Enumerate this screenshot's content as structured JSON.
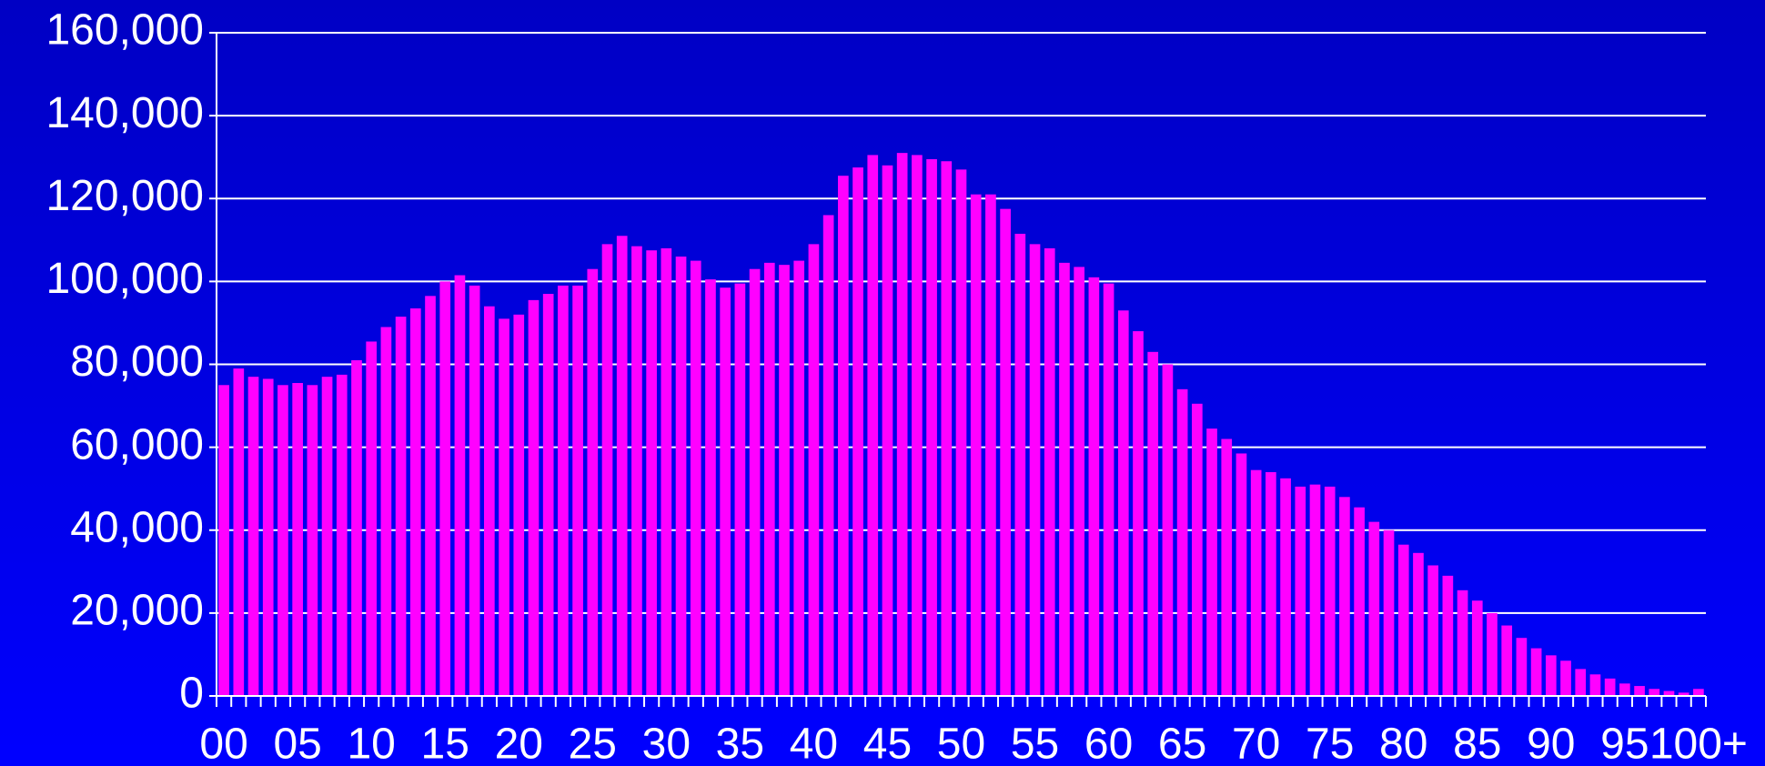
{
  "chart_data": {
    "type": "bar",
    "categories": [
      "00",
      null,
      null,
      null,
      null,
      "05",
      null,
      null,
      null,
      null,
      "10",
      null,
      null,
      null,
      null,
      "15",
      null,
      null,
      null,
      null,
      "20",
      null,
      null,
      null,
      null,
      "25",
      null,
      null,
      null,
      null,
      "30",
      null,
      null,
      null,
      null,
      "35",
      null,
      null,
      null,
      null,
      "40",
      null,
      null,
      null,
      null,
      "45",
      null,
      null,
      null,
      null,
      "50",
      null,
      null,
      null,
      null,
      "55",
      null,
      null,
      null,
      null,
      "60",
      null,
      null,
      null,
      null,
      "65",
      null,
      null,
      null,
      null,
      "70",
      null,
      null,
      null,
      null,
      "75",
      null,
      null,
      null,
      null,
      "80",
      null,
      null,
      null,
      null,
      "85",
      null,
      null,
      null,
      null,
      "90",
      null,
      null,
      null,
      null,
      "95",
      null,
      null,
      null,
      null,
      "100+"
    ],
    "values": [
      75000,
      79000,
      77000,
      76500,
      75000,
      75500,
      75000,
      77000,
      77500,
      81000,
      85500,
      89000,
      91500,
      93500,
      96500,
      100000,
      101500,
      99000,
      94000,
      91000,
      92000,
      95500,
      97000,
      99000,
      99000,
      103000,
      109000,
      111000,
      108500,
      107500,
      108000,
      106000,
      105000,
      100500,
      98500,
      99500,
      103000,
      104500,
      104000,
      105000,
      109000,
      116000,
      125500,
      127500,
      130500,
      128000,
      131000,
      130500,
      129500,
      129000,
      127000,
      121000,
      121000,
      117500,
      111500,
      109000,
      108000,
      104500,
      103500,
      101000,
      99500,
      93000,
      88000,
      83000,
      80000,
      74000,
      70500,
      64500,
      62000,
      58500,
      54500,
      54000,
      52500,
      50500,
      51000,
      50500,
      48000,
      45500,
      42000,
      40000,
      36500,
      34500,
      31500,
      29000,
      25500,
      23000,
      20000,
      17000,
      14000,
      11500,
      9800,
      8500,
      6500,
      5200,
      4200,
      3000,
      2400,
      1700,
      1200,
      800,
      1700
    ],
    "color": "#ff00ff",
    "ylim": [
      0,
      160000
    ],
    "yticks": [
      0,
      {
        "value": 20000,
        "label": "20,000"
      },
      {
        "value": 40000,
        "label": "40,000"
      },
      {
        "value": 60000,
        "label": "60,000"
      },
      {
        "value": 80000,
        "label": "80,000"
      },
      {
        "value": 100000,
        "label": "100,000"
      },
      {
        "value": 120000,
        "label": "120,000"
      },
      {
        "value": 140000,
        "label": "140,000"
      },
      {
        "value": 160000,
        "label": "160,000"
      }
    ],
    "grid": true
  }
}
